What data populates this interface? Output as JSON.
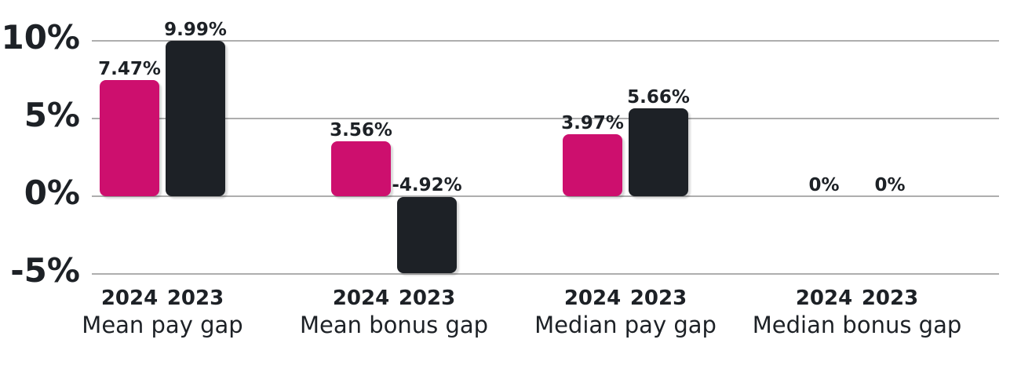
{
  "chart_data": {
    "type": "bar",
    "title": "",
    "categories": [
      "Mean pay gap",
      "Mean bonus gap",
      "Median pay gap",
      "Median bonus gap"
    ],
    "series": [
      {
        "name": "2024",
        "color": "#cd0f6e",
        "values": [
          7.47,
          3.56,
          3.97,
          0
        ],
        "labels": [
          "7.47%",
          "3.56%",
          "3.97%",
          "0%"
        ]
      },
      {
        "name": "2023",
        "color": "#1d2126",
        "values": [
          9.99,
          -4.92,
          5.66,
          0
        ],
        "labels": [
          "9.99%",
          "-4.92%",
          "5.66%",
          "0%"
        ]
      }
    ],
    "yticks": [
      {
        "value": 10,
        "label": "10%"
      },
      {
        "value": 5,
        "label": "5%"
      },
      {
        "value": 0,
        "label": "0%"
      },
      {
        "value": -5,
        "label": "-5%"
      }
    ],
    "ylim": [
      -5,
      10
    ],
    "grid": true,
    "legend_position": "none",
    "colors": {
      "bar_2024": "#cd0f6e",
      "bar_2023": "#1d2126",
      "grid": "#aeaeae",
      "text": "#1d2126",
      "background": "#ffffff"
    }
  }
}
